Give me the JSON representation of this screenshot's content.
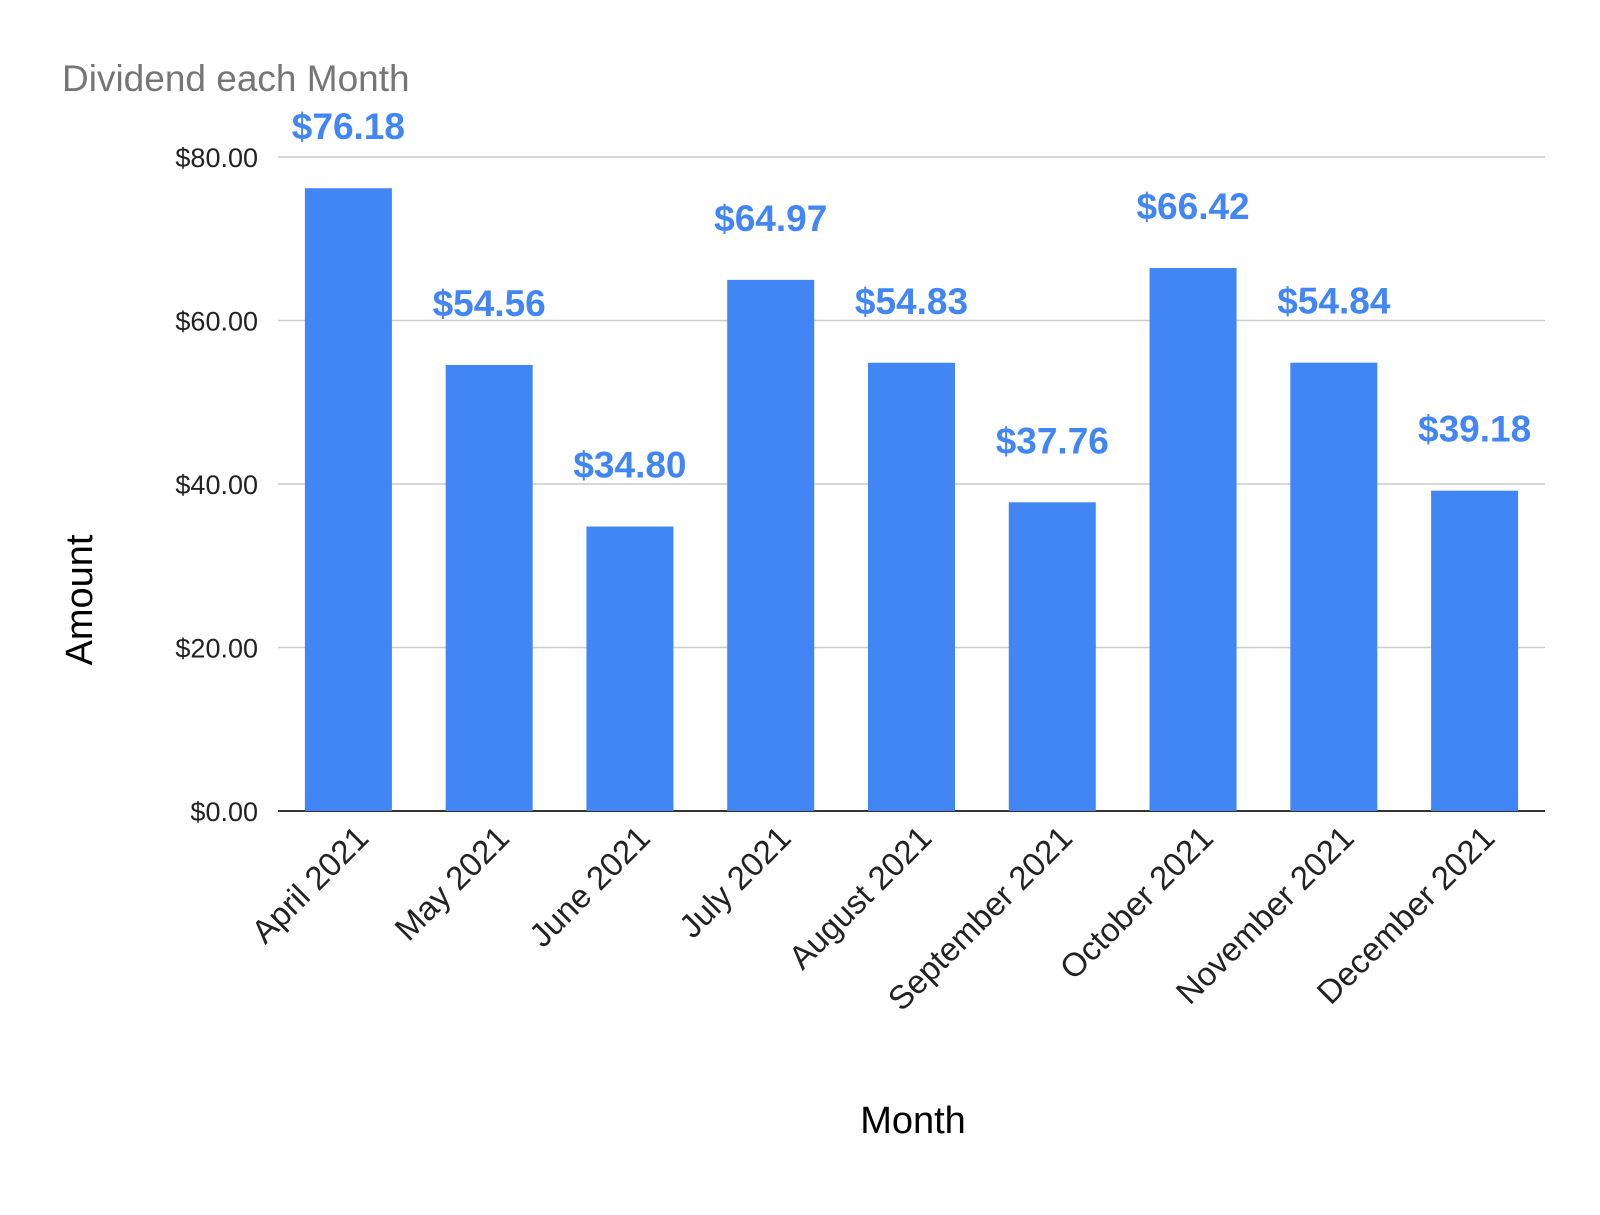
{
  "chart_data": {
    "type": "bar",
    "title": "Dividend each Month",
    "xlabel": "Month",
    "ylabel": "Amount",
    "categories": [
      "April 2021",
      "May 2021",
      "June 2021",
      "July 2021",
      "August 2021",
      "September 2021",
      "October 2021",
      "November 2021",
      "December 2021"
    ],
    "values": [
      76.18,
      54.56,
      34.8,
      64.97,
      54.83,
      37.76,
      66.42,
      54.84,
      39.18
    ],
    "data_labels": [
      "$76.18",
      "$54.56",
      "$34.80",
      "$64.97",
      "$54.83",
      "$37.76",
      "$66.42",
      "$54.84",
      "$39.18"
    ],
    "ylim": [
      0,
      80
    ],
    "yticks": [
      0,
      20,
      40,
      60,
      80
    ],
    "ytick_labels": [
      "$0.00",
      "$20.00",
      "$40.00",
      "$60.00",
      "$80.00"
    ],
    "grid": true,
    "legend": "none",
    "colors": {
      "bar": "#4285f4",
      "label": "#4285f4"
    }
  }
}
